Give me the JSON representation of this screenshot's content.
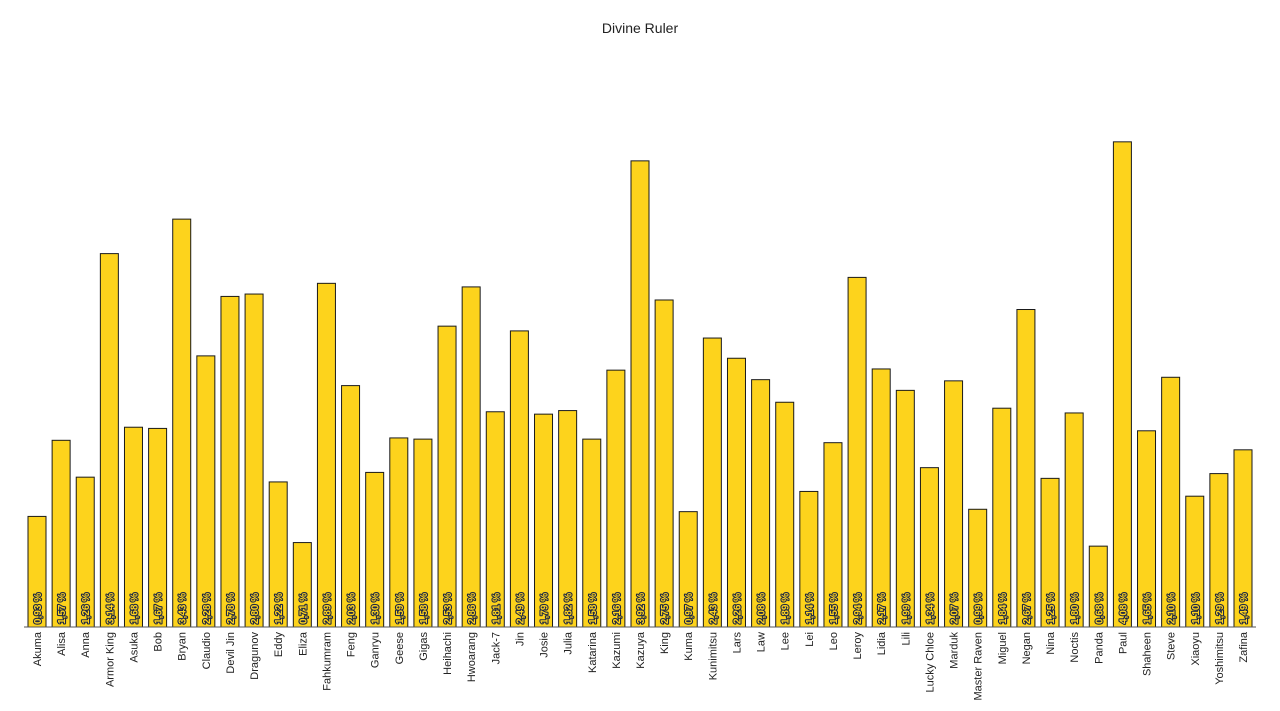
{
  "chart_data": {
    "type": "bar",
    "title": "Divine Ruler",
    "xlabel": "",
    "ylabel": "",
    "ylim": [
      0,
      4.6
    ],
    "grid": false,
    "value_suffix": " %",
    "bar_color": "#fdd31c",
    "bar_stroke": "#1a1a1a",
    "categories": [
      "Akuma",
      "Alisa",
      "Anna",
      "Armor King",
      "Asuka",
      "Bob",
      "Bryan",
      "Claudio",
      "Devil Jin",
      "Dragunov",
      "Eddy",
      "Eliza",
      "Fahkumram",
      "Feng",
      "Ganryu",
      "Geese",
      "Gigas",
      "Heihachi",
      "Hwoarang",
      "Jack-7",
      "Jin",
      "Josie",
      "Julia",
      "Katarina",
      "Kazumi",
      "Kazuya",
      "King",
      "Kuma",
      "Kunimitsu",
      "Lars",
      "Law",
      "Lee",
      "Lei",
      "Leo",
      "Leroy",
      "Lidia",
      "Lili",
      "Lucky Chloe",
      "Marduk",
      "Master Raven",
      "Miguel",
      "Negan",
      "Nina",
      "Noctis",
      "Panda",
      "Paul",
      "Shaheen",
      "Steve",
      "Xiaoyu",
      "Yoshimitsu",
      "Zafina"
    ],
    "values": [
      0.93,
      1.57,
      1.26,
      3.14,
      1.68,
      1.67,
      3.43,
      2.28,
      2.78,
      2.8,
      1.22,
      0.71,
      2.89,
      2.03,
      1.3,
      1.59,
      1.58,
      2.53,
      2.86,
      1.81,
      2.49,
      1.79,
      1.82,
      1.58,
      2.16,
      3.92,
      2.75,
      0.97,
      2.43,
      2.26,
      2.08,
      1.89,
      1.14,
      1.55,
      2.94,
      2.17,
      1.99,
      1.34,
      2.07,
      0.99,
      1.84,
      2.67,
      1.25,
      1.8,
      0.68,
      4.08,
      1.65,
      2.1,
      1.1,
      1.29,
      1.49
    ],
    "value_labels": [
      "0,93 %",
      "1,57 %",
      "1,26 %",
      "3,14 %",
      "1,68 %",
      "1,67 %",
      "3,43 %",
      "2,28 %",
      "2,78 %",
      "2,80 %",
      "1,22 %",
      "0,71 %",
      "2,89 %",
      "2,03 %",
      "1,30 %",
      "1,59 %",
      "1,58 %",
      "2,53 %",
      "2,86 %",
      "1,81 %",
      "2,49 %",
      "1,79 %",
      "1,82 %",
      "1,58 %",
      "2,16 %",
      "3,92 %",
      "2,75 %",
      "0,97 %",
      "2,43 %",
      "2,26 %",
      "2,08 %",
      "1,89 %",
      "1,14 %",
      "1,55 %",
      "2,94 %",
      "2,17 %",
      "1,99 %",
      "1,34 %",
      "2,07 %",
      "0,99 %",
      "1,84 %",
      "2,67 %",
      "1,25 %",
      "1,80 %",
      "0,68 %",
      "4,08 %",
      "1,65 %",
      "2,10 %",
      "1,10 %",
      "1,29 %",
      "1,49 %"
    ]
  }
}
